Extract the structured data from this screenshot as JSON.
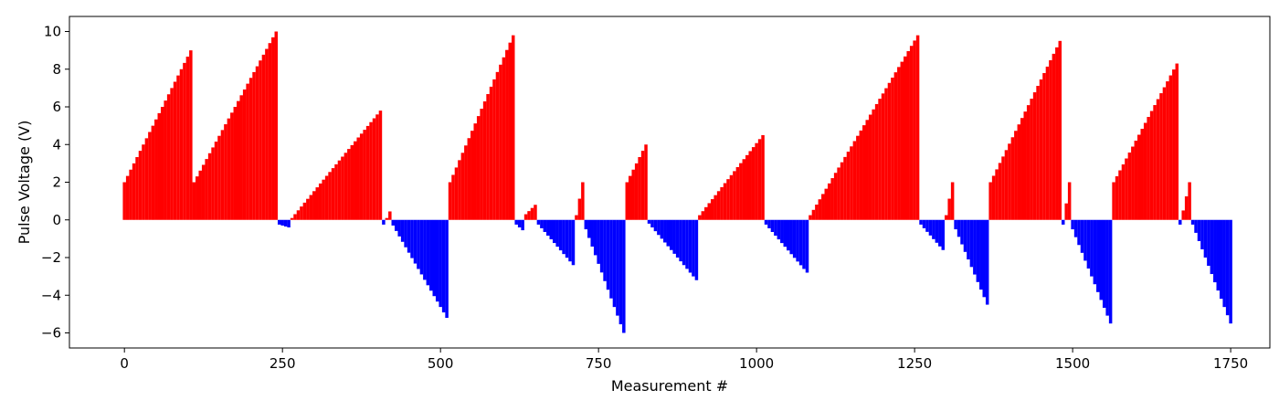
{
  "chart_data": {
    "type": "bar",
    "title": "",
    "xlabel": "Measurement #",
    "ylabel": "Pulse Voltage (V)",
    "xlim": [
      -87,
      1812
    ],
    "ylim": [
      -6.8,
      10.8
    ],
    "xticks": [
      0,
      250,
      500,
      750,
      1000,
      1250,
      1500,
      1750
    ],
    "yticks": [
      -6,
      -4,
      -2,
      0,
      2,
      4,
      6,
      8,
      10
    ],
    "grid": false,
    "colors": {
      "positive": "#ff0000",
      "negative": "#0000ff",
      "axis": "#000000"
    },
    "segments": [
      {
        "name": "ramp-1a",
        "x_start": 0,
        "x_end": 105,
        "y_start": 2.0,
        "y_end": 9.0
      },
      {
        "name": "ramp-1b",
        "x_start": 110,
        "x_end": 240,
        "y_start": 2.0,
        "y_end": 10.0
      },
      {
        "name": "dip-1",
        "x_start": 245,
        "x_end": 260,
        "y_start": -0.25,
        "y_end": -0.4
      },
      {
        "name": "ramp-2",
        "x_start": 265,
        "x_end": 405,
        "y_start": 0.1,
        "y_end": 5.8
      },
      {
        "name": "small-1",
        "x_start": 410,
        "x_end": 420,
        "y_start": -0.25,
        "y_end": 0.45
      },
      {
        "name": "drop-1",
        "x_start": 425,
        "x_end": 510,
        "y_start": -0.3,
        "y_end": -5.2
      },
      {
        "name": "ramp-3",
        "x_start": 515,
        "x_end": 615,
        "y_start": 2.0,
        "y_end": 9.8
      },
      {
        "name": "dip-2",
        "x_start": 620,
        "x_end": 630,
        "y_start": -0.25,
        "y_end": -0.55
      },
      {
        "name": "ramp-4",
        "x_start": 635,
        "x_end": 650,
        "y_start": 0.3,
        "y_end": 0.8
      },
      {
        "name": "drop-2",
        "x_start": 655,
        "x_end": 710,
        "y_start": -0.25,
        "y_end": -2.4
      },
      {
        "name": "ramp-5",
        "x_start": 715,
        "x_end": 725,
        "y_start": 0.25,
        "y_end": 2.0
      },
      {
        "name": "drop-3",
        "x_start": 730,
        "x_end": 790,
        "y_start": -0.5,
        "y_end": -6.0
      },
      {
        "name": "ramp-6",
        "x_start": 795,
        "x_end": 825,
        "y_start": 2.0,
        "y_end": 4.0
      },
      {
        "name": "drop-4",
        "x_start": 830,
        "x_end": 905,
        "y_start": -0.2,
        "y_end": -3.2
      },
      {
        "name": "ramp-7",
        "x_start": 910,
        "x_end": 1010,
        "y_start": 0.25,
        "y_end": 4.5
      },
      {
        "name": "drop-5",
        "x_start": 1015,
        "x_end": 1080,
        "y_start": -0.25,
        "y_end": -2.8
      },
      {
        "name": "ramp-8",
        "x_start": 1085,
        "x_end": 1255,
        "y_start": 0.25,
        "y_end": 9.8
      },
      {
        "name": "drop-6",
        "x_start": 1260,
        "x_end": 1295,
        "y_start": -0.25,
        "y_end": -1.6
      },
      {
        "name": "ramp-9",
        "x_start": 1300,
        "x_end": 1310,
        "y_start": 0.25,
        "y_end": 2.0
      },
      {
        "name": "drop-7",
        "x_start": 1315,
        "x_end": 1365,
        "y_start": -0.5,
        "y_end": -4.5
      },
      {
        "name": "ramp-10",
        "x_start": 1370,
        "x_end": 1480,
        "y_start": 2.0,
        "y_end": 9.5
      },
      {
        "name": "small-2",
        "x_start": 1485,
        "x_end": 1495,
        "y_start": -0.25,
        "y_end": 2.0
      },
      {
        "name": "drop-8",
        "x_start": 1500,
        "x_end": 1560,
        "y_start": -0.5,
        "y_end": -5.5
      },
      {
        "name": "ramp-11",
        "x_start": 1565,
        "x_end": 1665,
        "y_start": 2.0,
        "y_end": 8.3
      },
      {
        "name": "small-3",
        "x_start": 1670,
        "x_end": 1685,
        "y_start": -0.25,
        "y_end": 2.0
      },
      {
        "name": "drop-9",
        "x_start": 1690,
        "x_end": 1750,
        "y_start": -0.25,
        "y_end": -5.5
      }
    ],
    "step": 5,
    "bar_width": 3.5
  }
}
